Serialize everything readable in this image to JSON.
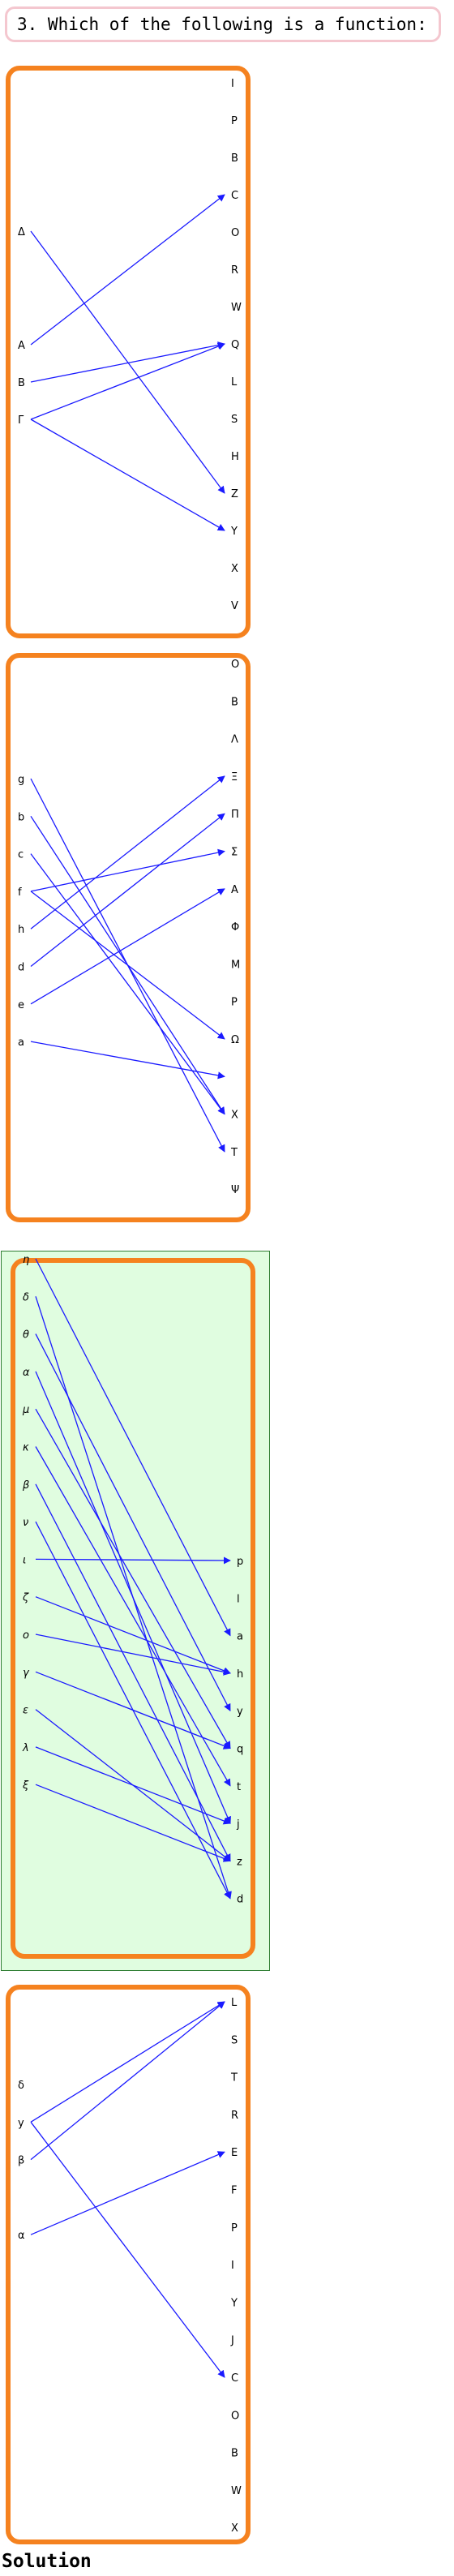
{
  "question": "3. Which of the following is a function:",
  "solution_label": "Solution",
  "colors": {
    "frame": "#f5821f",
    "arrow": "#1a1aff",
    "highlight_fill": "#e0fde0",
    "highlight_border": "#2e7d32"
  },
  "diagrams": [
    {
      "id": "A",
      "domain": [
        "Δ",
        "A",
        "B",
        "Γ"
      ],
      "codomain": [
        "I",
        "P",
        "B",
        "C",
        "O",
        "R",
        "W",
        "Q",
        "L",
        "S",
        "H",
        "Z",
        "Y",
        "X",
        "V"
      ],
      "arrows": [
        [
          "Δ",
          "Z"
        ],
        [
          "A",
          "C"
        ],
        [
          "B",
          "Q"
        ],
        [
          "Γ",
          "Q"
        ],
        [
          "Γ",
          "Y"
        ]
      ]
    },
    {
      "id": "B",
      "domain": [
        "g",
        "b",
        "c",
        "f",
        "h",
        "d",
        "e",
        "a"
      ],
      "codomain": [
        "O",
        "B",
        "Λ",
        "Ξ",
        "Π",
        "Σ",
        "A",
        "Φ",
        "M",
        "P",
        "Ω",
        "",
        "X",
        "T",
        "Ψ"
      ],
      "arrows": [
        [
          "g",
          "T"
        ],
        [
          "b",
          "X"
        ],
        [
          "c",
          "X"
        ],
        [
          "f",
          "Σ"
        ],
        [
          "f",
          "Ω"
        ],
        [
          "h",
          "Ξ"
        ],
        [
          "d",
          "Π"
        ],
        [
          "e",
          "A"
        ],
        [
          "a",
          "blank"
        ]
      ]
    },
    {
      "id": "C",
      "highlighted": true,
      "domain": [
        "η",
        "δ",
        "θ",
        "α",
        "μ",
        "κ",
        "β",
        "ν",
        "ι",
        "ζ",
        "ο",
        "γ",
        "ε",
        "λ",
        "ξ"
      ],
      "codomain": [
        "p",
        "l",
        "a",
        "h",
        "y",
        "q",
        "t",
        "j",
        "z",
        "d"
      ],
      "arrows": [
        [
          "η",
          "a"
        ],
        [
          "δ",
          "d"
        ],
        [
          "θ",
          "y"
        ],
        [
          "α",
          "j"
        ],
        [
          "μ",
          "q"
        ],
        [
          "κ",
          "t"
        ],
        [
          "β",
          "z"
        ],
        [
          "ν",
          "d"
        ],
        [
          "ι",
          "p"
        ],
        [
          "ζ",
          "h"
        ],
        [
          "ο",
          "h"
        ],
        [
          "γ",
          "q"
        ],
        [
          "ε",
          "z"
        ],
        [
          "λ",
          "j"
        ],
        [
          "ξ",
          "z"
        ]
      ]
    },
    {
      "id": "D",
      "domain": [
        "δ",
        "y",
        "β",
        "",
        "α"
      ],
      "codomain": [
        "L",
        "S",
        "T",
        "R",
        "E",
        "F",
        "P",
        "I",
        "Y",
        "J",
        "C",
        "O",
        "B",
        "W",
        "X"
      ],
      "arrows": [
        [
          "y",
          "L"
        ],
        [
          "y",
          "C"
        ],
        [
          "β",
          "L"
        ],
        [
          "α",
          "E"
        ]
      ]
    }
  ]
}
